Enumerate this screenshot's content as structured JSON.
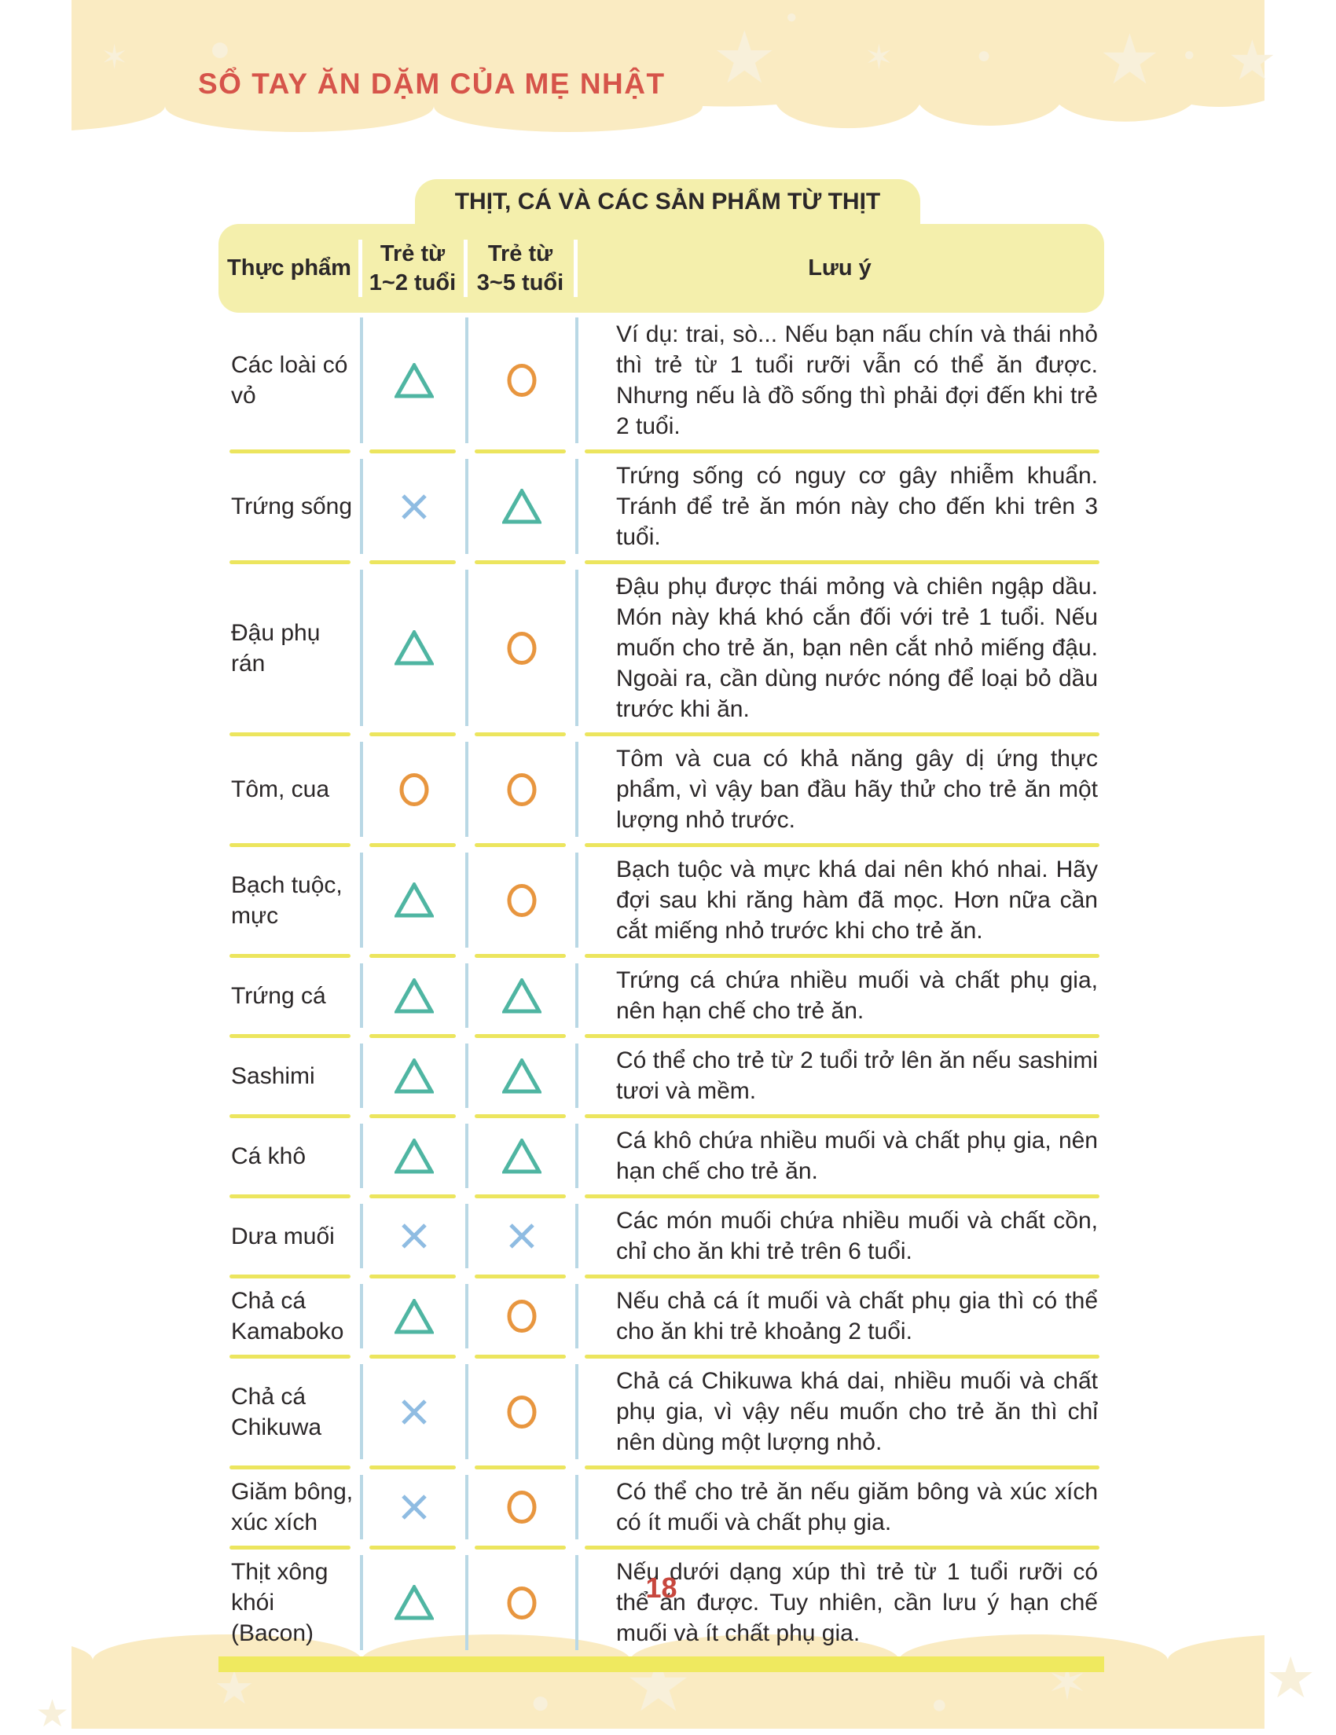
{
  "page": {
    "banner_title": "SỔ TAY ĂN DẶM CỦA MẸ NHẬT",
    "page_number": "18"
  },
  "icons": {
    "star": "★",
    "sparkle": "✶",
    "dot": "●"
  },
  "colors": {
    "band_yellow": "#FAEBC2",
    "band_decoration_cream": "#F8F0DA",
    "box_yellow": "#F4EFAC",
    "separator_yellow": "#ECE55E",
    "bottom_bar_yellow": "#EFE95F",
    "banner_red": "#D6544A",
    "page_number_red": "#C7473E",
    "text_dark": "#2B2728",
    "triangle_teal": "#4FB5A2",
    "circle_orange": "#E8963F",
    "cross_blue": "#8FBCE2",
    "divider_blue": "#B9D8E5"
  },
  "table": {
    "title": "THỊT, CÁ VÀ CÁC SẢN PHẨM TỪ THỊT",
    "columns": {
      "food": "Thực phẩm",
      "age12": [
        "Trẻ từ",
        "1~2 tuổi"
      ],
      "age35": [
        "Trẻ từ",
        "3~5 tuổi"
      ],
      "note": "Lưu ý"
    },
    "symbol_glyphs": {
      "triangle": "△",
      "circle": "○",
      "cross": "×"
    },
    "rows": [
      {
        "food": "Các loài có vỏ",
        "age_1_2": "triangle",
        "age_3_5": "circle",
        "note": "Ví dụ: trai, sò... Nếu bạn nấu chín và thái nhỏ thì trẻ từ 1 tuổi rưỡi vẫn có thể ăn được. Nhưng nếu là đồ sống thì phải đợi đến khi trẻ 2 tuổi."
      },
      {
        "food": "Trứng sống",
        "age_1_2": "cross",
        "age_3_5": "triangle",
        "note": "Trứng sống có nguy cơ gây nhiễm khuẩn. Tránh để trẻ ăn món này cho đến khi trên 3 tuổi."
      },
      {
        "food": "Đậu phụ rán",
        "age_1_2": "triangle",
        "age_3_5": "circle",
        "note": "Đậu phụ được thái mỏng và chiên ngập dầu. Món này khá khó cắn đối với trẻ 1 tuổi. Nếu muốn cho trẻ ăn, bạn nên cắt nhỏ miếng đậu. Ngoài ra, cần dùng nước nóng để loại bỏ dầu trước khi ăn."
      },
      {
        "food": "Tôm, cua",
        "age_1_2": "circle",
        "age_3_5": "circle",
        "note": "Tôm và cua có khả năng gây dị ứng thực phẩm, vì vậy ban đầu hãy thử cho trẻ ăn một lượng nhỏ trước."
      },
      {
        "food": "Bạch tuộc, mực",
        "age_1_2": "triangle",
        "age_3_5": "circle",
        "note": "Bạch tuộc và mực khá dai nên khó nhai. Hãy đợi sau khi răng hàm đã mọc. Hơn nữa cần cắt miếng nhỏ trước khi cho trẻ ăn."
      },
      {
        "food": "Trứng cá",
        "age_1_2": "triangle",
        "age_3_5": "triangle",
        "note": "Trứng cá chứa nhiều muối và chất phụ gia, nên hạn chế cho trẻ ăn."
      },
      {
        "food": "Sashimi",
        "age_1_2": "triangle",
        "age_3_5": "triangle",
        "note": "Có thể cho trẻ từ 2 tuổi trở lên ăn nếu sashimi tươi và mềm."
      },
      {
        "food": "Cá khô",
        "age_1_2": "triangle",
        "age_3_5": "triangle",
        "note": "Cá khô chứa nhiều muối và chất phụ gia, nên hạn chế cho trẻ ăn."
      },
      {
        "food": "Dưa muối",
        "age_1_2": "cross",
        "age_3_5": "cross",
        "note": "Các món muối chứa nhiều muối và chất cồn, chỉ cho ăn khi trẻ trên 6 tuổi."
      },
      {
        "food": "Chả cá Kamaboko",
        "age_1_2": "triangle",
        "age_3_5": "circle",
        "note": "Nếu chả cá ít muối và chất phụ gia thì có thể cho ăn khi trẻ khoảng 2 tuổi."
      },
      {
        "food": "Chả cá Chikuwa",
        "age_1_2": "cross",
        "age_3_5": "circle",
        "note": "Chả cá Chikuwa khá dai, nhiều muối và chất phụ gia, vì vậy nếu muốn cho trẻ ăn thì chỉ nên dùng một lượng nhỏ."
      },
      {
        "food": "Giăm bông, xúc xích",
        "age_1_2": "cross",
        "age_3_5": "circle",
        "note": "Có thể cho trẻ ăn nếu giăm bông và xúc xích có ít muối và chất phụ gia."
      },
      {
        "food": "Thịt xông khói (Bacon)",
        "age_1_2": "triangle",
        "age_3_5": "circle",
        "note": "Nếu dưới dạng xúp thì trẻ từ 1 tuổi rưỡi có thể ăn được. Tuy nhiên, cần lưu ý hạn chế muối và ít chất phụ gia."
      }
    ]
  }
}
